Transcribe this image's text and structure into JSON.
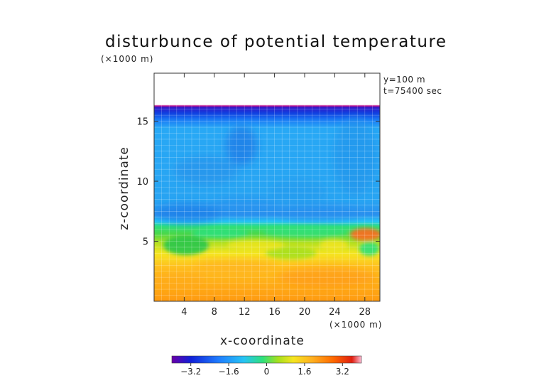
{
  "chart_data": {
    "type": "heatmap",
    "title": "disturbunce of potential temperature",
    "xlabel": "x-coordinate",
    "ylabel": "z-coordinate",
    "x_scale_note": "(×1000 m)",
    "y_scale_note": "(×1000 m)",
    "annotations": [
      "y=100 m",
      "t=75400 sec"
    ],
    "xlim": [
      0,
      30
    ],
    "ylim": [
      0,
      19
    ],
    "x_ticks": [
      4,
      8,
      12,
      16,
      20,
      24,
      28
    ],
    "x_tick_labels": [
      "4",
      "8",
      "12",
      "16",
      "20",
      "24",
      "28"
    ],
    "y_ticks": [
      5,
      10,
      15
    ],
    "y_tick_labels": [
      "5",
      "10",
      "15"
    ],
    "colorbar": {
      "range": [
        -4,
        4
      ],
      "ticks": [
        -3.2,
        -1.6,
        0,
        1.6,
        3.2
      ],
      "tick_labels": [
        "−3.2",
        "−1.6",
        "0",
        "1.6",
        "3.2"
      ],
      "colors": [
        "#6a00a8",
        "#1020d8",
        "#1f7fff",
        "#26c4f4",
        "#2fe07a",
        "#a6e01e",
        "#f5e520",
        "#ffb020",
        "#ff6a00",
        "#e01f10",
        "#ffbcd6"
      ]
    },
    "field_summary": [
      {
        "z_range": [
          16.8,
          19
        ],
        "description": "no data (white)"
      },
      {
        "z_range": [
          16.4,
          16.8
        ],
        "value": -3.2
      },
      {
        "z_range": [
          15.2,
          16.4
        ],
        "value": -2.0
      },
      {
        "z_range": [
          7.0,
          15.2
        ],
        "value": -1.4
      },
      {
        "z_range": [
          5.5,
          7.0
        ],
        "value": 0.4
      },
      {
        "z_range": [
          4.5,
          5.5
        ],
        "value": 1.4
      },
      {
        "z_range": [
          0,
          4.5
        ],
        "value": 2.5
      }
    ]
  }
}
